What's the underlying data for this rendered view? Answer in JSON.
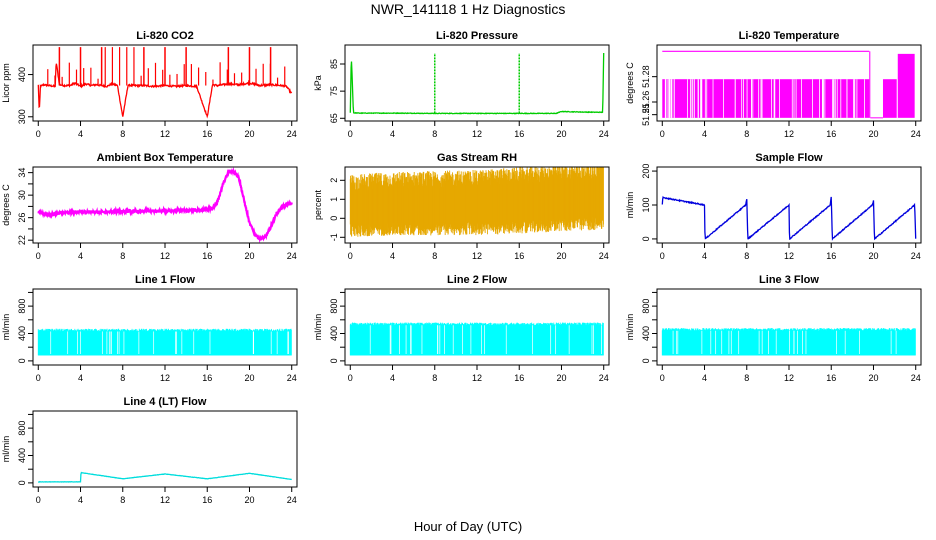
{
  "figure": {
    "title": "NWR_141118  1 Hz Diagnostics",
    "xlabel": "Hour of Day (UTC)",
    "x_ticks": [
      0,
      4,
      8,
      12,
      16,
      20,
      24
    ],
    "xlim": [
      -0.5,
      24.5
    ]
  },
  "chart_data": [
    {
      "id": "co2",
      "type": "line",
      "title": "Li-820 CO2",
      "ylabel": "Licor ppm",
      "color": "#ff0000",
      "ylim": [
        290,
        470
      ],
      "y_ticks": [
        300,
        400
      ],
      "pattern": "co2",
      "x": [
        0,
        0.1,
        0.2,
        0.5,
        1,
        1.6,
        1.7,
        2,
        2.5,
        3,
        3.5,
        4,
        4.5,
        5,
        5.5,
        6,
        6.5,
        7,
        7.5,
        8,
        8.5,
        9,
        10,
        11,
        12,
        13,
        14,
        15,
        16,
        16.5,
        17,
        18,
        19,
        20,
        21,
        22,
        23,
        23.5,
        24
      ],
      "y": [
        375,
        310,
        372,
        376,
        374,
        372,
        430,
        376,
        374,
        374,
        380,
        372,
        378,
        374,
        376,
        374,
        372,
        378,
        374,
        300,
        375,
        374,
        374,
        372,
        374,
        372,
        374,
        372,
        300,
        376,
        374,
        378,
        376,
        380,
        374,
        376,
        374,
        372,
        355
      ]
    },
    {
      "id": "pressure",
      "type": "line",
      "title": "Li-820 Pressure",
      "ylabel": "kPa",
      "color": "#00cc00",
      "ylim": [
        64,
        92
      ],
      "y_ticks": [
        65,
        75,
        85
      ],
      "pattern": "pressure",
      "x": [
        0,
        0.1,
        0.3,
        1,
        4,
        8,
        12,
        16,
        19.5,
        20,
        22,
        23.9,
        24
      ],
      "y": [
        67,
        88,
        67,
        66.9,
        66.9,
        66.8,
        66.8,
        66.8,
        66.8,
        67.5,
        67.3,
        67.2,
        89
      ]
    },
    {
      "id": "li820_temp",
      "type": "line",
      "title": "Li-820 Temperature",
      "ylabel": "degrees C",
      "color": "#ff00ff",
      "ylim": [
        51.245,
        51.305
      ],
      "y_ticks": [
        51.25,
        51.26,
        51.28
      ],
      "y_tick_labels": [
        "51.25",
        "51.26",
        "51.28"
      ],
      "pattern": "liTemp",
      "x": [
        0,
        20,
        23.9
      ],
      "y": [
        51.278,
        51.278,
        51.297
      ]
    },
    {
      "id": "box_temp",
      "type": "line",
      "title": "Ambient Box Temperature",
      "ylabel": "degrees C",
      "color": "#ff00ff",
      "ylim": [
        21.5,
        35
      ],
      "y_ticks": [
        22,
        24,
        26,
        28,
        30,
        32,
        34
      ],
      "y_tick_labels": [
        "22",
        "",
        "26",
        "",
        "30",
        "",
        "34"
      ],
      "pattern": "boxTemp",
      "x": [
        0,
        1,
        2,
        4,
        8,
        12,
        15,
        16.5,
        17,
        17.5,
        18,
        18.6,
        19,
        19.5,
        20,
        20.5,
        21,
        21.5,
        22,
        22.5,
        23,
        23.5,
        24
      ],
      "y": [
        27,
        26.6,
        26.8,
        27,
        27.1,
        27.2,
        27.3,
        27.6,
        29,
        32,
        34,
        34.2,
        33,
        29,
        25,
        23.2,
        22.2,
        22.5,
        24.3,
        26.5,
        27.8,
        28.3,
        28.5
      ]
    },
    {
      "id": "rh",
      "type": "line",
      "title": "Gas Stream RH",
      "ylabel": "percent",
      "color": "#e6a800",
      "ylim": [
        -1.3,
        2.7
      ],
      "y_ticks": [
        -1,
        0,
        1,
        2
      ],
      "pattern": "rh",
      "x": [
        0,
        4,
        8,
        12,
        16,
        20,
        24
      ],
      "y": [
        0.5,
        0.6,
        0.6,
        0.6,
        0.7,
        0.8,
        0.9
      ]
    },
    {
      "id": "sample_flow",
      "type": "line",
      "title": "Sample Flow",
      "ylabel": "ml/min",
      "color": "#0000dd",
      "ylim": [
        -12,
        212
      ],
      "y_ticks": [
        0,
        100,
        200
      ],
      "pattern": "sample",
      "x": [
        0,
        0.05,
        4,
        4.05,
        7.9,
        8,
        8.1,
        12,
        12.05,
        15.9,
        16,
        16.1,
        19.9,
        20,
        20.1,
        23.9,
        24
      ],
      "y": [
        100,
        122,
        100,
        0,
        100,
        118,
        0,
        100,
        0,
        100,
        125,
        0,
        100,
        112,
        0,
        100,
        0
      ]
    },
    {
      "id": "line1",
      "type": "area",
      "title": "Line 1 Flow",
      "ylabel": "ml/min",
      "color": "#00ffff",
      "ylim": [
        -60,
        1050
      ],
      "y_ticks": [
        0,
        200,
        400,
        600,
        800,
        1000
      ],
      "y_tick_labels": [
        "0",
        "",
        "400",
        "",
        "800",
        ""
      ],
      "pattern": "flowBand",
      "x": [
        0,
        24
      ],
      "y_low": [
        80,
        80
      ],
      "y_high": [
        470,
        470
      ]
    },
    {
      "id": "line2",
      "type": "area",
      "title": "Line 2 Flow",
      "ylabel": "ml/min",
      "color": "#00ffff",
      "ylim": [
        -60,
        1050
      ],
      "y_ticks": [
        0,
        200,
        400,
        600,
        800,
        1000
      ],
      "y_tick_labels": [
        "0",
        "",
        "400",
        "",
        "800",
        ""
      ],
      "pattern": "flowBand",
      "x": [
        0,
        24
      ],
      "y_low": [
        80,
        80
      ],
      "y_high": [
        560,
        560
      ]
    },
    {
      "id": "line3",
      "type": "area",
      "title": "Line 3 Flow",
      "ylabel": "ml/min",
      "color": "#00ffff",
      "ylim": [
        -60,
        1050
      ],
      "y_ticks": [
        0,
        200,
        400,
        600,
        800,
        1000
      ],
      "y_tick_labels": [
        "0",
        "",
        "400",
        "",
        "800",
        ""
      ],
      "pattern": "flowBand",
      "x": [
        0,
        24
      ],
      "y_low": [
        80,
        80
      ],
      "y_high": [
        480,
        480
      ]
    },
    {
      "id": "line4",
      "type": "line",
      "title": "Line 4 (LT) Flow",
      "ylabel": "ml/min",
      "color": "#00dddd",
      "ylim": [
        -60,
        1050
      ],
      "y_ticks": [
        0,
        200,
        400,
        600,
        800,
        1000
      ],
      "y_tick_labels": [
        "0",
        "",
        "400",
        "",
        "800",
        ""
      ],
      "pattern": "line4",
      "x": [
        0,
        4,
        4.05,
        8,
        12,
        16,
        20,
        24
      ],
      "y": [
        15,
        15,
        150,
        60,
        130,
        60,
        140,
        50
      ]
    }
  ]
}
